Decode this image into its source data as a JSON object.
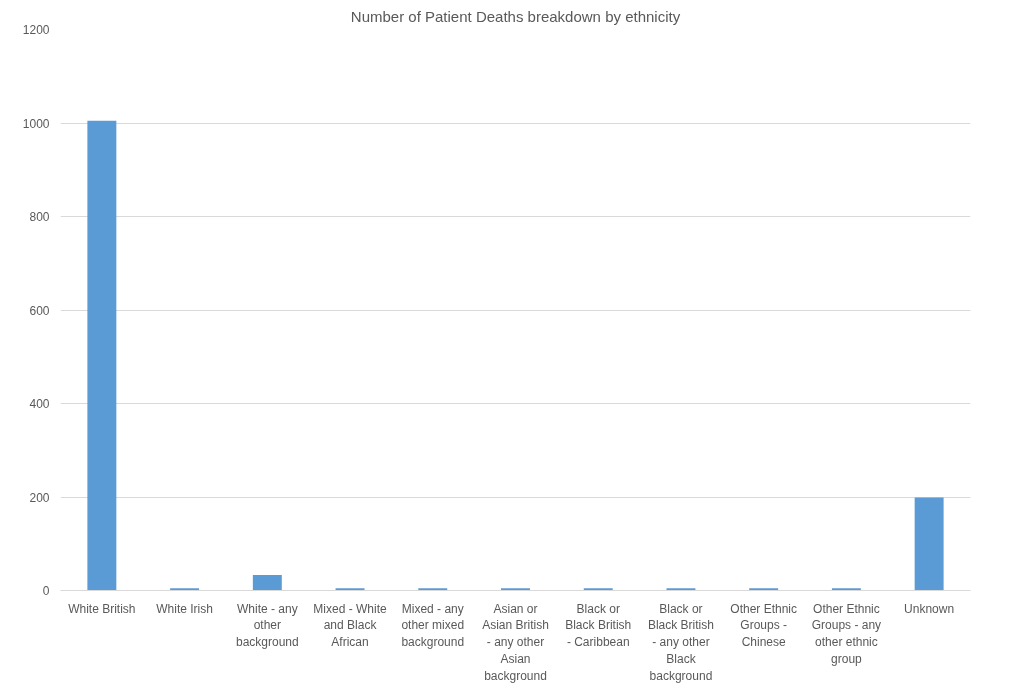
{
  "chart_data": {
    "type": "bar",
    "title": "Number of Patient Deaths breakdown by ethnicity",
    "categories": [
      "White British",
      "White Irish",
      "White - any other background",
      "Mixed - White and Black African",
      "Mixed - any other mixed background",
      "Asian or Asian British - any other Asian background",
      "Black or Black British - Caribbean",
      "Black or Black British - any other Black background",
      "Other Ethnic Groups - Chinese",
      "Other Ethnic Groups - any other ethnic group",
      "Unknown"
    ],
    "values": [
      1005,
      5,
      33,
      5,
      5,
      5,
      5,
      5,
      5,
      5,
      199
    ],
    "color": "#5b9bd5",
    "ylim": [
      0,
      1200
    ],
    "yticks": [
      0,
      200,
      400,
      600,
      800,
      1000,
      1200
    ],
    "grid": "y"
  }
}
